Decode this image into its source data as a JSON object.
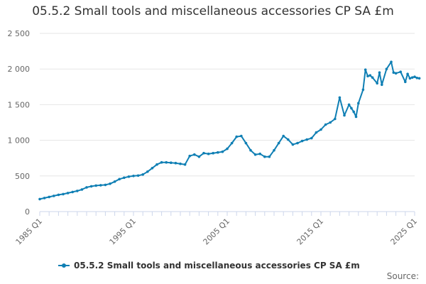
{
  "chart_data": {
    "type": "line",
    "title": "05.5.2 Small tools and miscellaneous accessories CP SA £m",
    "xlabel": "",
    "ylabel": "",
    "ylim": [
      0,
      2500
    ],
    "yticks": [
      0,
      500,
      1000,
      1500,
      2000,
      2500
    ],
    "ytick_labels": [
      "0",
      "500",
      "1 000",
      "1 500",
      "2 000",
      "2 500"
    ],
    "xlim": [
      1985,
      2025
    ],
    "xticks": [
      1985,
      1995,
      2005,
      2015,
      2025
    ],
    "xtick_labels": [
      "1985 Q1",
      "1995 Q1",
      "2005 Q1",
      "2015 Q1",
      "2025 Q1"
    ],
    "grid": "horizontal",
    "legend": "bottom",
    "series": [
      {
        "name": "05.5.2 Small tools and miscellaneous accessories CP SA £m",
        "color": "#0f7fb4",
        "x": [
          1985.0,
          1985.5,
          1986.0,
          1986.5,
          1987.0,
          1987.5,
          1988.0,
          1988.5,
          1989.0,
          1989.5,
          1990.0,
          1990.5,
          1991.0,
          1991.5,
          1992.0,
          1992.5,
          1993.0,
          1993.5,
          1994.0,
          1994.5,
          1995.0,
          1995.5,
          1996.0,
          1996.5,
          1997.0,
          1997.5,
          1998.0,
          1998.5,
          1999.0,
          1999.5,
          2000.0,
          2000.5,
          2001.0,
          2001.5,
          2002.0,
          2002.5,
          2003.0,
          2003.5,
          2004.0,
          2004.5,
          2005.0,
          2005.5,
          2006.0,
          2006.5,
          2007.0,
          2007.5,
          2008.0,
          2008.5,
          2009.0,
          2009.5,
          2010.0,
          2010.5,
          2011.0,
          2011.5,
          2012.0,
          2012.5,
          2013.0,
          2013.5,
          2014.0,
          2014.5,
          2015.0,
          2015.5,
          2016.0,
          2016.5,
          2017.0,
          2017.5,
          2018.0,
          2018.25,
          2018.5,
          2018.75,
          2019.0,
          2019.5,
          2019.75,
          2020.0,
          2020.25,
          2020.5,
          2021.0,
          2021.25,
          2021.5,
          2022.0,
          2022.5,
          2022.75,
          2023.0,
          2023.5,
          2024.0,
          2024.25,
          2024.5,
          2024.75,
          2025.0,
          2025.25,
          2025.5
        ],
        "values": [
          175,
          190,
          205,
          220,
          235,
          245,
          260,
          275,
          290,
          310,
          340,
          355,
          365,
          370,
          375,
          390,
          420,
          455,
          475,
          490,
          500,
          505,
          520,
          560,
          610,
          660,
          690,
          690,
          685,
          680,
          670,
          660,
          780,
          800,
          770,
          820,
          810,
          820,
          830,
          840,
          880,
          960,
          1050,
          1060,
          960,
          860,
          800,
          810,
          770,
          770,
          860,
          960,
          1060,
          1010,
          940,
          960,
          990,
          1010,
          1030,
          1110,
          1150,
          1220,
          1250,
          1300,
          1600,
          1350,
          1500,
          1450,
          1400,
          1330,
          1520,
          1710,
          1990,
          1900,
          1910,
          1880,
          1800,
          1950,
          1780,
          2000,
          2100,
          1950,
          1940,
          1960,
          1820,
          1930,
          1870,
          1880,
          1890,
          1875,
          1870
        ]
      }
    ]
  },
  "source_label": "Source:"
}
